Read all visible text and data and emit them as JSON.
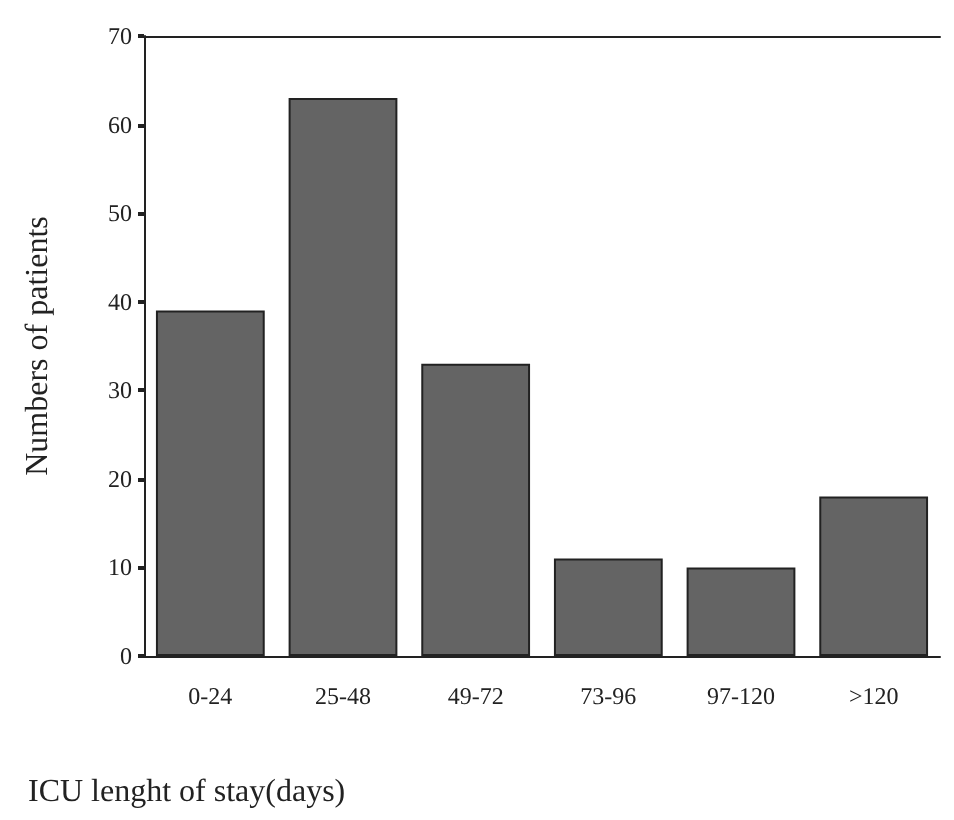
{
  "chart_data": {
    "type": "bar",
    "xlabel": "ICU lenght of stay(days)",
    "ylabel": "Numbers of patients",
    "categories": [
      "0-24",
      "25-48",
      "49-72",
      "73-96",
      "97-120",
      ">120"
    ],
    "values": [
      39,
      63,
      33,
      11,
      10,
      18
    ],
    "color": "#646464",
    "ylim": [
      0,
      70
    ],
    "yticks": [
      0,
      10,
      20,
      30,
      40,
      50,
      60,
      70
    ],
    "grid": false
  }
}
